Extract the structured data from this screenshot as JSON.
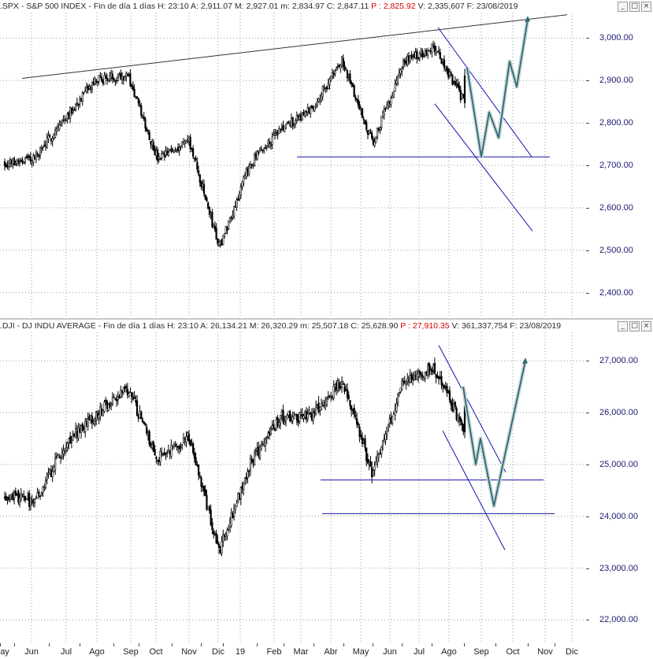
{
  "spx_header": {
    "symbol": ".SPX - S&P 500 INDEX - Fin de día 1 días",
    "h_label": "H:",
    "h_value": "23:10",
    "a_label": "A:",
    "a_value": "2,911.07",
    "m_label": "M:",
    "m_value": "2,927.01",
    "min_label": "m:",
    "min_value": "2,834.97",
    "c_label": "C:",
    "c_value": "2,847.11",
    "p_label": "P :",
    "p_value": "2,825.92",
    "v_label": "V:",
    "v_value": "2,335,607",
    "f_label": "F:",
    "f_value": "23/08/2019"
  },
  "dji_header": {
    "symbol": ".DJI - DJ INDU AVERAGE - Fin de día 1 días",
    "h_label": "H:",
    "h_value": "23:10",
    "a_label": "A:",
    "a_value": "26,134.21",
    "m_label": "M:",
    "m_value": "26,320.29",
    "min_label": "m:",
    "min_value": "25,507.18",
    "c_label": "C:",
    "c_value": "25,628.90",
    "p_label": "P :",
    "p_value": "27,910.35",
    "v_label": "V:",
    "v_value": "361,337,754",
    "f_label": "F:",
    "f_value": "23/08/2019"
  },
  "window_buttons": {
    "minimize": "_",
    "maximize": "□",
    "close": "×"
  },
  "colors": {
    "candles": "#000000",
    "trendlines": "#1515b0",
    "resistance": "#333333",
    "projection": "#2e6b72",
    "axis_text": "#1a1a70",
    "price_red": "#d40000"
  },
  "x_axis": {
    "labels": [
      "ay",
      "Jun",
      "Jul",
      "Ago",
      "Sep",
      "Oct",
      "Nov",
      "Dic",
      "19",
      "Feb",
      "Mar",
      "Abr",
      "May",
      "Jun",
      "Jul",
      "Ago",
      "Sep",
      "Oct",
      "Nov",
      "Dic"
    ]
  },
  "chart_data": [
    {
      "type": "candlestick",
      "symbol": ".SPX",
      "title": ".SPX - S&P 500 INDEX - Fin de día 1 días",
      "ylim": [
        2340,
        3060
      ],
      "yticks": [
        "3,000.00",
        "2,900.00",
        "2,800.00",
        "2,700.00",
        "2,600.00",
        "2,500.00",
        "2,400.00"
      ],
      "ytick_values": [
        3000,
        2900,
        2800,
        2700,
        2600,
        2500,
        2400
      ],
      "months": [
        "May-2018",
        "Jun-2018",
        "Jul-2018",
        "Ago-2018",
        "Sep-2018",
        "Oct-2018",
        "Nov-2018",
        "Dic-2018",
        "Ene-2019",
        "Feb-2019",
        "Mar-2019",
        "Abr-2019",
        "May-2019",
        "Jun-2019",
        "Jul-2019",
        "Ago-2019"
      ],
      "monthly_close_approx": [
        2705,
        2718,
        2816,
        2901,
        2914,
        2712,
        2760,
        2507,
        2704,
        2784,
        2834,
        2946,
        2752,
        2942,
        2980,
        2847
      ],
      "last": {
        "open": 2911.07,
        "high": 2927.01,
        "low": 2834.97,
        "close": 2847.11
      },
      "annotations": {
        "resistance_line": [
          [
            2905,
            3055
          ]
        ],
        "support_line": 2720,
        "channel_top": [
          3025,
          2720
        ],
        "channel_bottom": [
          2845,
          2545
        ],
        "projection_path": [
          2930,
          2720,
          2825,
          2765,
          2945,
          2885,
          3045
        ]
      }
    },
    {
      "type": "candlestick",
      "symbol": ".DJI",
      "title": ".DJI - DJ INDU AVERAGE - Fin de día 1 días",
      "ylim": [
        21550,
        27550
      ],
      "yticks": [
        "27,000.00",
        "26,000.00",
        "25,000.00",
        "24,000.00",
        "23,000.00",
        "22,000.00"
      ],
      "ytick_values": [
        27000,
        26000,
        25000,
        24000,
        23000,
        22000
      ],
      "months": [
        "May-2018",
        "Jun-2018",
        "Jul-2018",
        "Ago-2018",
        "Sep-2018",
        "Oct-2018",
        "Nov-2018",
        "Dic-2018",
        "Ene-2019",
        "Feb-2019",
        "Mar-2019",
        "Abr-2019",
        "May-2019",
        "Jun-2019",
        "Jul-2019",
        "Ago-2019"
      ],
      "monthly_close_approx": [
        24416,
        24271,
        25415,
        25965,
        26458,
        25116,
        25538,
        23327,
        25000,
        25916,
        25929,
        26593,
        24815,
        26600,
        26864,
        25629
      ],
      "last": {
        "open": 26134.21,
        "high": 26320.29,
        "low": 25507.18,
        "close": 25628.9
      },
      "annotations": {
        "support_line_1": 24700,
        "support_line_2": 24050,
        "channel_top": [
          27300,
          24850
        ],
        "channel_bottom": [
          25650,
          23350
        ],
        "projection_path": [
          26500,
          25000,
          25500,
          24200,
          27000
        ]
      }
    }
  ]
}
